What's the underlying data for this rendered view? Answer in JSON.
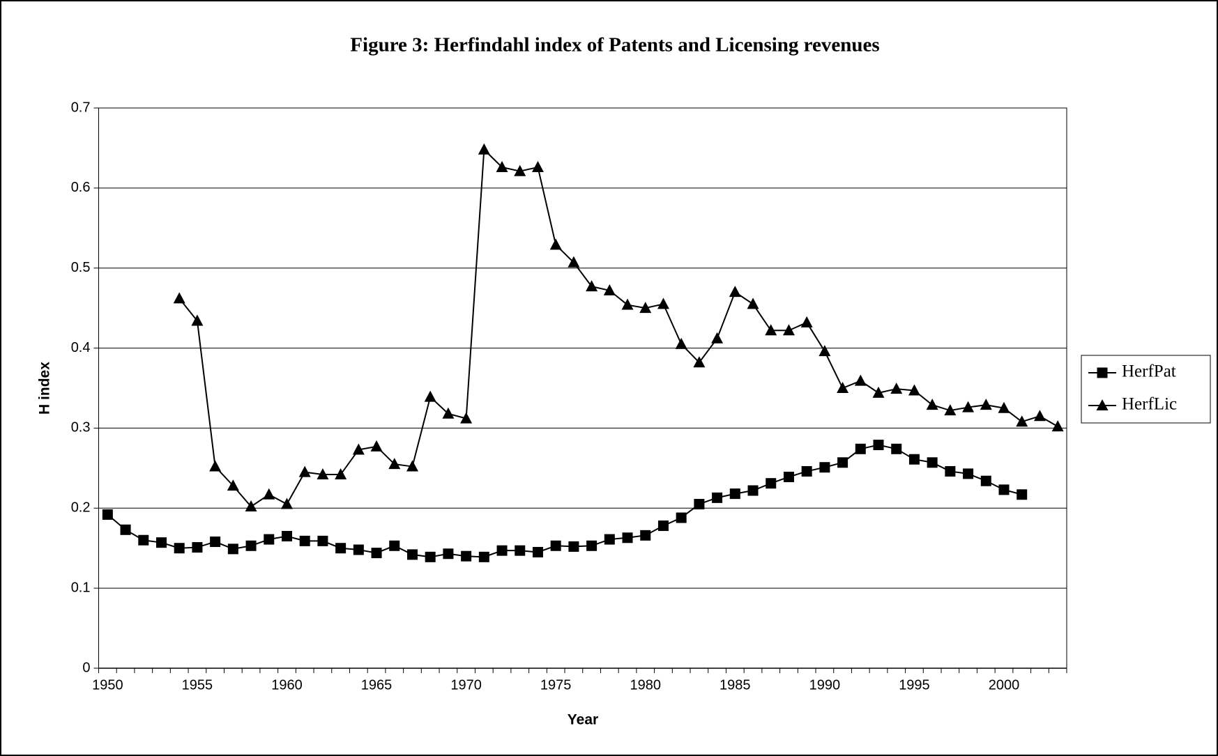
{
  "chart_data": {
    "type": "line",
    "title": "Figure 3: Herfindahl index of Patents and Licensing revenues",
    "x_label": "Year",
    "y_label": "H index",
    "x": [
      1950,
      1951,
      1952,
      1953,
      1954,
      1955,
      1956,
      1957,
      1958,
      1959,
      1960,
      1961,
      1962,
      1963,
      1964,
      1965,
      1966,
      1967,
      1968,
      1969,
      1970,
      1971,
      1972,
      1973,
      1974,
      1975,
      1976,
      1977,
      1978,
      1979,
      1980,
      1981,
      1982,
      1983,
      1984,
      1985,
      1986,
      1987,
      1988,
      1989,
      1990,
      1991,
      1992,
      1993,
      1994,
      1995,
      1996,
      1997,
      1998,
      1999,
      2000,
      2001,
      2002,
      2003
    ],
    "xlim": [
      1949.5,
      2003.5
    ],
    "xticks": [
      1950,
      1955,
      1960,
      1965,
      1970,
      1975,
      1980,
      1985,
      1990,
      1995,
      2000
    ],
    "ylim": [
      0,
      0.7
    ],
    "yticks": [
      0,
      0.1,
      0.2,
      0.3,
      0.4,
      0.5,
      0.6,
      0.7
    ],
    "grid": true,
    "legend": "right",
    "series": [
      {
        "name": "HerfPat",
        "color": "#000000",
        "marker": "square",
        "values": [
          0.192,
          0.173,
          0.16,
          0.157,
          0.15,
          0.151,
          0.158,
          0.149,
          0.153,
          0.161,
          0.165,
          0.159,
          0.159,
          0.15,
          0.148,
          0.144,
          0.153,
          0.142,
          0.139,
          0.143,
          0.14,
          0.139,
          0.147,
          0.147,
          0.145,
          0.153,
          0.152,
          0.153,
          0.161,
          0.163,
          0.166,
          0.178,
          0.188,
          0.205,
          0.213,
          0.218,
          0.222,
          0.231,
          0.239,
          0.246,
          0.251,
          0.257,
          0.274,
          0.279,
          0.274,
          0.261,
          0.257,
          0.246,
          0.243,
          0.234,
          0.223,
          0.217,
          null,
          null
        ]
      },
      {
        "name": "HerfLic",
        "color": "#000000",
        "marker": "triangle",
        "values": [
          null,
          null,
          null,
          null,
          0.462,
          0.434,
          0.252,
          0.228,
          0.202,
          0.217,
          0.205,
          0.245,
          0.242,
          0.242,
          0.273,
          0.277,
          0.255,
          0.252,
          0.339,
          0.318,
          0.312,
          0.648,
          0.626,
          0.621,
          0.626,
          0.529,
          0.507,
          0.477,
          0.472,
          0.454,
          0.45,
          0.455,
          0.405,
          0.382,
          0.412,
          0.47,
          0.455,
          0.422,
          0.422,
          0.432,
          0.396,
          0.35,
          0.359,
          0.344,
          0.349,
          0.347,
          0.329,
          0.322,
          0.326,
          0.329,
          0.325,
          0.308,
          0.315,
          0.302
        ]
      }
    ]
  }
}
